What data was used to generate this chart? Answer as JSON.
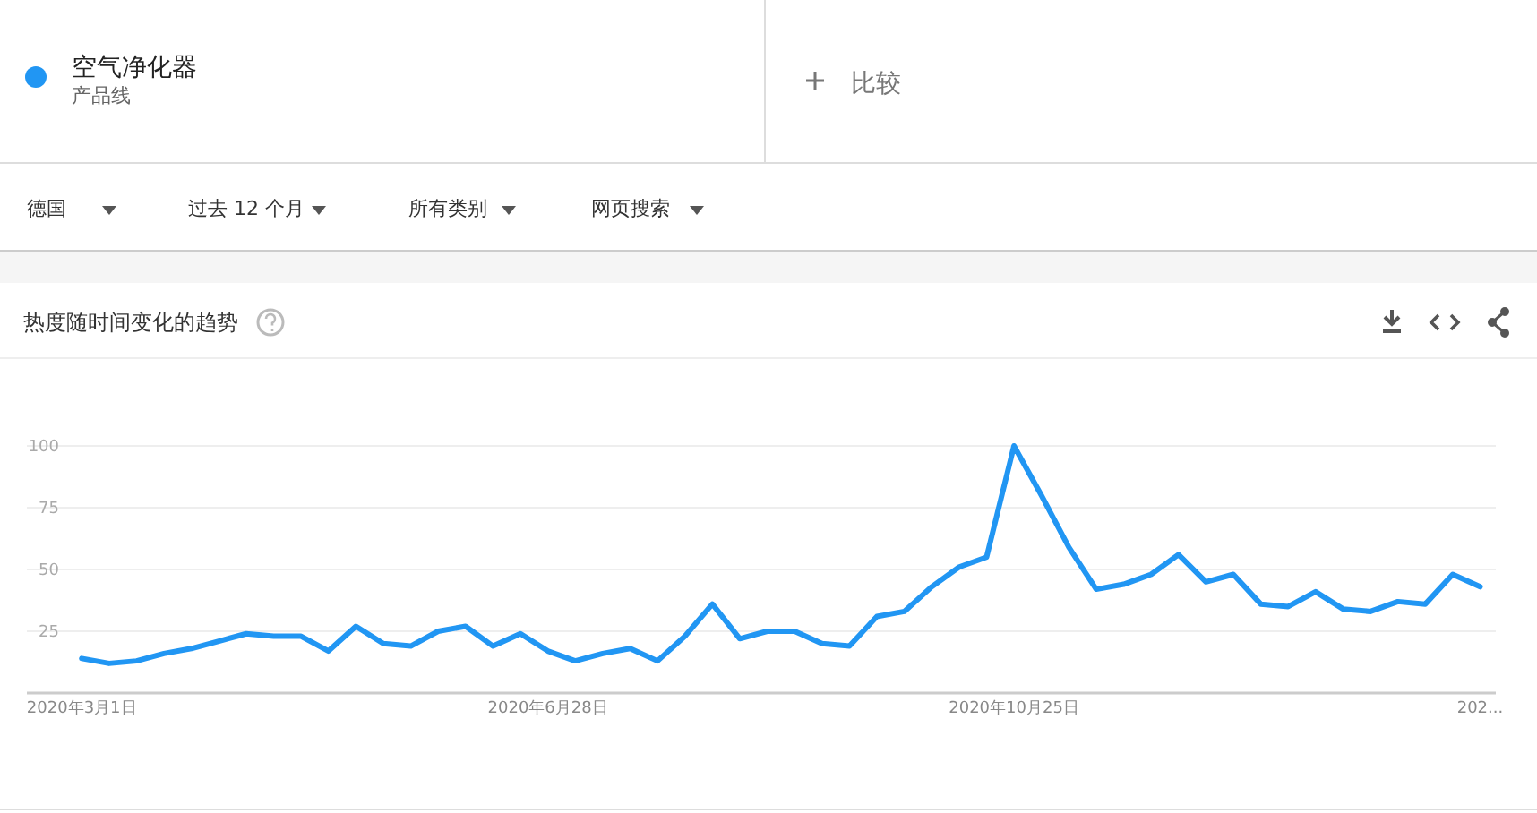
{
  "chart_data": {
    "type": "line",
    "title": "热度随时间变化的趋势",
    "annotations": [
      "产品线",
      "比较",
      "德国",
      "过去 12 个月",
      "所有类别",
      "网页搜索"
    ],
    "legend": "top left",
    "x": [
      "2020-03-01",
      "2020-03-08",
      "2020-03-15",
      "2020-03-22",
      "2020-03-29",
      "2020-04-05",
      "2020-04-12",
      "2020-04-19",
      "2020-04-26",
      "2020-05-03",
      "2020-05-10",
      "2020-05-17",
      "2020-05-24",
      "2020-05-31",
      "2020-06-07",
      "2020-06-14",
      "2020-06-21",
      "2020-06-28",
      "2020-07-05",
      "2020-07-12",
      "2020-07-19",
      "2020-07-26",
      "2020-08-02",
      "2020-08-09",
      "2020-08-16",
      "2020-08-23",
      "2020-08-30",
      "2020-09-06",
      "2020-09-13",
      "2020-09-20",
      "2020-09-27",
      "2020-10-04",
      "2020-10-11",
      "2020-10-18",
      "2020-10-25",
      "2020-11-01",
      "2020-11-08",
      "2020-11-15",
      "2020-11-22",
      "2020-11-29",
      "2020-12-06",
      "2020-12-13",
      "2020-12-20",
      "2020-12-27",
      "2021-01-03",
      "2021-01-10",
      "2021-01-17",
      "2021-01-24",
      "2021-01-31",
      "2021-02-07",
      "2021-02-14",
      "2021-02-21"
    ],
    "series": [
      {
        "name": "空气净化器",
        "color": "#2196f3",
        "values": [
          14,
          12,
          13,
          16,
          18,
          21,
          24,
          23,
          23,
          17,
          27,
          20,
          19,
          25,
          27,
          19,
          24,
          17,
          13,
          16,
          18,
          13,
          23,
          36,
          22,
          25,
          25,
          20,
          19,
          31,
          33,
          43,
          51,
          55,
          100,
          80,
          59,
          42,
          44,
          48,
          56,
          45,
          48,
          36,
          35,
          41,
          34,
          33,
          37,
          36,
          48,
          43
        ]
      }
    ],
    "xlim": [
      "2020-02-16",
      "2021-02-25"
    ],
    "xticks": [
      {
        "value": "2020-03-01",
        "label": "2020年3月1日"
      },
      {
        "value": "2020-06-28",
        "label": "2020年6月28日"
      },
      {
        "value": "2020-10-25",
        "label": "2020年10月25日"
      },
      {
        "value": "2021-02-21",
        "label": "202..."
      }
    ],
    "ylim": [
      0,
      100
    ],
    "yticks": [
      25,
      50,
      75,
      100
    ],
    "grid": "y",
    "marker": "none",
    "line_style": "solid"
  }
}
